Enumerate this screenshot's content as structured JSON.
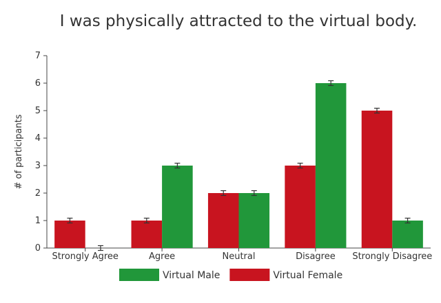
{
  "chart_data": {
    "type": "bar",
    "title": "I was physically attracted to the virtual body.",
    "xlabel": "",
    "ylabel": "# of participants",
    "categories": [
      "Strongly Agree",
      "Agree",
      "Neutral",
      "Disagree",
      "Strongly Disagree"
    ],
    "series": [
      {
        "name": "Virtual Female",
        "color": "#c8141f",
        "values": [
          1,
          1,
          2,
          3,
          5
        ]
      },
      {
        "name": "Virtual Male",
        "color": "#21973a",
        "values": [
          0,
          3,
          2,
          6,
          1
        ]
      }
    ],
    "ylim": [
      0,
      7
    ],
    "yticks": [
      0,
      1,
      2,
      3,
      4,
      5,
      6,
      7
    ],
    "error_bars": true,
    "grid": false,
    "legend": {
      "placement": "bottom-center",
      "order": [
        "Virtual Male",
        "Virtual Female"
      ]
    }
  }
}
